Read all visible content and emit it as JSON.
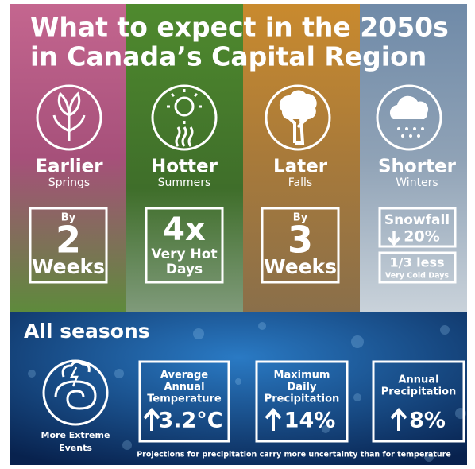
{
  "title": [
    "What to expect in the 2050s",
    "in Canada’s Capital Region"
  ],
  "seasons": [
    {
      "heading": "Earlier",
      "sub": "Springs",
      "box": [
        "By",
        "2",
        "Weeks"
      ]
    },
    {
      "heading": "Hotter",
      "sub": "Summers",
      "box": [
        "4x",
        "Very Hot",
        "Days"
      ]
    },
    {
      "heading": "Later",
      "sub": "Falls",
      "box": [
        "By",
        "3",
        "Weeks"
      ]
    },
    {
      "heading": "Shorter",
      "sub": "Winters",
      "box": [
        "Snowfall",
        "20%"
      ],
      "box2": [
        "1/3 less",
        "Very Cold Days"
      ]
    }
  ],
  "all_seasons": {
    "title": "All seasons",
    "icon_label": [
      "More Extreme",
      "Events"
    ],
    "items": [
      {
        "label": [
          "Average",
          "Annual",
          "Temperature"
        ],
        "value": "3.2°C"
      },
      {
        "label": [
          "Maximum",
          "Daily",
          "Precipitation"
        ],
        "value": "14%"
      },
      {
        "label": [
          "Annual",
          "Precipitation"
        ],
        "value": "8%"
      }
    ],
    "footnote": "Projections for precipitation carry more uncertainty than for temperature"
  }
}
